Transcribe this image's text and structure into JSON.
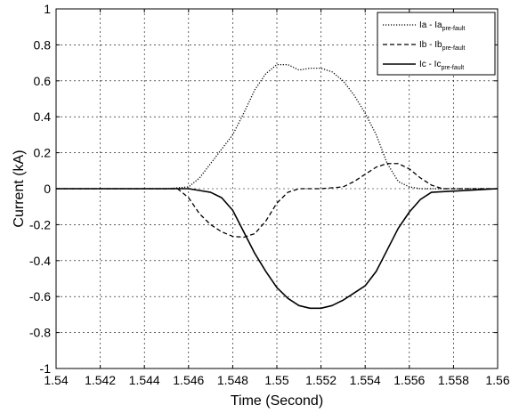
{
  "chart_data": {
    "type": "line",
    "title": "",
    "xlabel": "Time (Second)",
    "ylabel": "Current (kA)",
    "xlim": [
      1.54,
      1.56
    ],
    "ylim": [
      -1,
      1
    ],
    "grid": true,
    "legend_position": "top-right",
    "x_ticks": [
      "1.54",
      "1.542",
      "1.544",
      "1.546",
      "1.548",
      "1.55",
      "1.552",
      "1.554",
      "1.556",
      "1.558",
      "1.56"
    ],
    "y_ticks": [
      "1",
      "0.8",
      "0.6",
      "0.4",
      "0.2",
      "0",
      "-0.2",
      "-0.4",
      "-0.6",
      "-0.8",
      "-1"
    ],
    "series": [
      {
        "name": "Ia - Ia",
        "name_subscript": "pre-fault",
        "line_style": "dotted",
        "color": "#000000",
        "x": [
          1.54,
          1.545,
          1.546,
          1.5465,
          1.547,
          1.5475,
          1.548,
          1.5485,
          1.549,
          1.5495,
          1.55,
          1.5505,
          1.551,
          1.5515,
          1.552,
          1.5525,
          1.553,
          1.5535,
          1.554,
          1.5545,
          1.555,
          1.5555,
          1.556,
          1.5565,
          1.557,
          1.56
        ],
        "y": [
          0,
          0,
          0.01,
          0.06,
          0.14,
          0.22,
          0.3,
          0.42,
          0.55,
          0.64,
          0.69,
          0.69,
          0.66,
          0.67,
          0.67,
          0.65,
          0.6,
          0.52,
          0.42,
          0.3,
          0.14,
          0.04,
          0.01,
          0,
          0,
          0
        ]
      },
      {
        "name": "Ib - Ib",
        "name_subscript": "pre-fault",
        "line_style": "dashed",
        "color": "#000000",
        "x": [
          1.54,
          1.5455,
          1.546,
          1.5465,
          1.547,
          1.5475,
          1.548,
          1.5485,
          1.549,
          1.5495,
          1.55,
          1.5505,
          1.551,
          1.552,
          1.553,
          1.5535,
          1.554,
          1.5545,
          1.555,
          1.5555,
          1.556,
          1.5565,
          1.557,
          1.5575,
          1.56
        ],
        "y": [
          0,
          0,
          -0.05,
          -0.14,
          -0.2,
          -0.24,
          -0.265,
          -0.27,
          -0.25,
          -0.18,
          -0.08,
          -0.02,
          0,
          0,
          0.01,
          0.04,
          0.08,
          0.12,
          0.14,
          0.14,
          0.11,
          0.06,
          0.02,
          0,
          0
        ]
      },
      {
        "name": "Ic - Ic",
        "name_subscript": "pre-fault",
        "line_style": "solid",
        "color": "#000000",
        "x": [
          1.54,
          1.546,
          1.5465,
          1.547,
          1.5475,
          1.548,
          1.5485,
          1.549,
          1.5495,
          1.55,
          1.5505,
          1.551,
          1.5515,
          1.552,
          1.5525,
          1.553,
          1.5535,
          1.554,
          1.5545,
          1.555,
          1.5555,
          1.556,
          1.5565,
          1.557,
          1.56
        ],
        "y": [
          0,
          0,
          -0.01,
          -0.02,
          -0.05,
          -0.12,
          -0.24,
          -0.36,
          -0.46,
          -0.55,
          -0.61,
          -0.65,
          -0.665,
          -0.665,
          -0.65,
          -0.62,
          -0.58,
          -0.54,
          -0.46,
          -0.34,
          -0.22,
          -0.13,
          -0.06,
          -0.02,
          0
        ]
      }
    ]
  }
}
